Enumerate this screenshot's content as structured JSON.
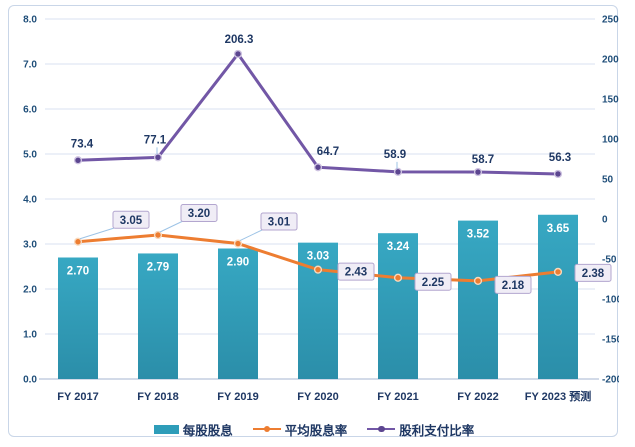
{
  "page": {
    "background": "#ffffff",
    "frame_border": "#c9d6e8"
  },
  "chart_data": {
    "type": "bar",
    "subtype": "combo-bar-line-dual-axis",
    "title": "",
    "xlabel": "",
    "ylabel_left": "",
    "ylabel_right": "",
    "grid": true,
    "legend_position": "bottom",
    "categories": [
      "FY 2017",
      "FY 2018",
      "FY 2019",
      "FY 2020",
      "FY 2021",
      "FY 2022",
      "FY 2023 预测"
    ],
    "series": [
      {
        "name": "每股股息",
        "kind": "bar",
        "axis": "left",
        "values": [
          2.7,
          2.79,
          2.9,
          3.03,
          3.24,
          3.52,
          3.65
        ],
        "labels": [
          "2.70",
          "2.79",
          "2.90",
          "3.03",
          "3.24",
          "3.52",
          "3.65"
        ],
        "color": "#2e9db9",
        "color_top": "#37a8c3",
        "color_bottom": "#2b8ea9",
        "label_color": "#ffffff"
      },
      {
        "name": "平均股息率",
        "kind": "line",
        "axis": "left",
        "values": [
          3.05,
          3.2,
          3.01,
          2.43,
          2.25,
          2.18,
          2.38
        ],
        "labels": [
          "3.05",
          "3.20",
          "3.01",
          "2.43",
          "2.25",
          "2.18",
          "2.38"
        ],
        "color": "#ed7d31",
        "marker_fill": "#ed7d31",
        "marker_ring": "#f8d9bd",
        "label_style": "callout",
        "callout_fill": "#f0edf6",
        "callout_border": "#b3a6cf",
        "label_offsets": [
          [
            35,
            -22
          ],
          [
            23,
            -22
          ],
          [
            23,
            -22
          ],
          [
            20,
            2
          ],
          [
            17,
            4
          ],
          [
            17,
            4
          ],
          [
            17,
            1
          ]
        ],
        "leader_indices": [
          0,
          1,
          2
        ]
      },
      {
        "name": "股利支付比率",
        "kind": "line",
        "axis": "right",
        "values": [
          73.4,
          77.1,
          206.3,
          64.7,
          58.9,
          58.7,
          56.3
        ],
        "labels": [
          "73.4",
          "77.1",
          "206.3",
          "64.7",
          "58.9",
          "58.7",
          "56.3"
        ],
        "color": "#7257a6",
        "marker_fill": "#5c4690",
        "marker_ring": "#cdc2e0",
        "label_style": "plain",
        "label_offsets": [
          [
            4,
            -16
          ],
          [
            -3,
            -17
          ],
          [
            1,
            -14
          ],
          [
            10,
            -15
          ],
          [
            -3,
            -17
          ],
          [
            5,
            -12
          ],
          [
            2,
            -16
          ]
        ],
        "leader_indices": [
          1,
          4
        ]
      }
    ],
    "left_axis": {
      "min": 0,
      "max": 8,
      "step": 1,
      "tick_labels": [
        "0.0",
        "1.0",
        "2.0",
        "3.0",
        "4.0",
        "5.0",
        "6.0",
        "7.0",
        "8.0"
      ]
    },
    "right_axis": {
      "min": -200,
      "max": 250,
      "step": 50,
      "tick_labels": [
        "-200",
        "-150",
        "-100",
        "-50",
        "0",
        "50",
        "100",
        "150",
        "200",
        "250"
      ]
    },
    "colors": {
      "gridline": "#d9e2f1",
      "axis_line": "#b6c4da",
      "tick_text": "#1f4e79",
      "data_label_text": "#1f3864",
      "leader_line": "#9dc3e6"
    }
  }
}
